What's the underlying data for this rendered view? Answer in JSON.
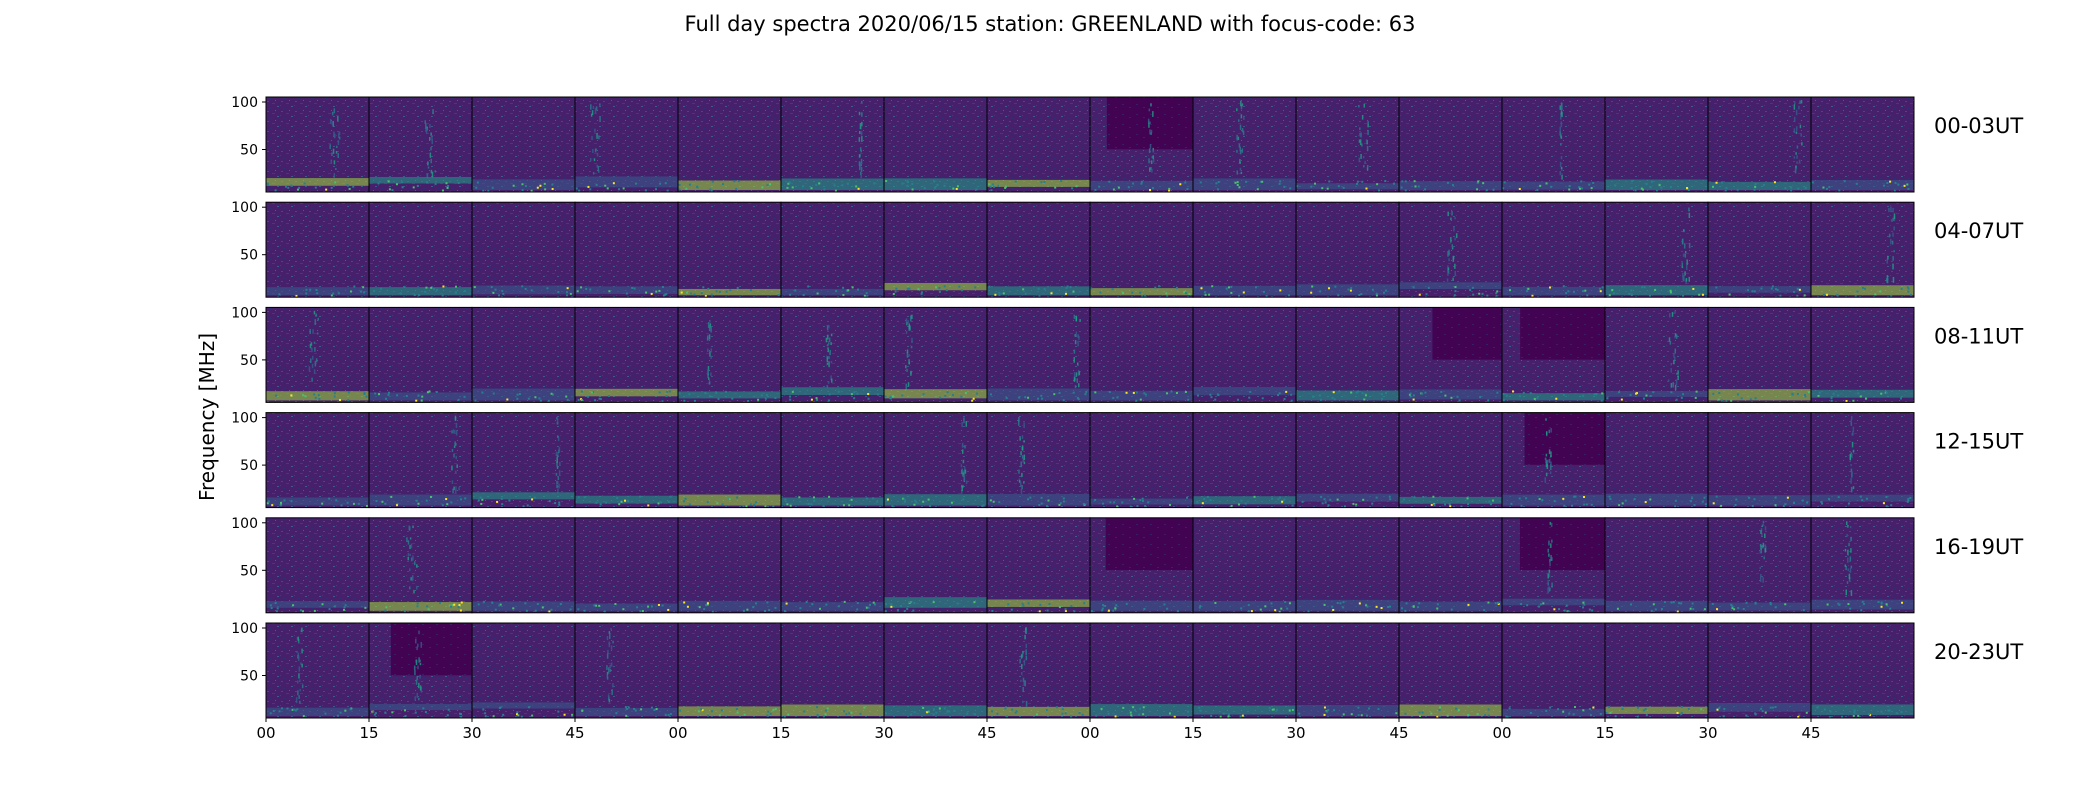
{
  "chart_data": {
    "type": "heatmap",
    "title": "Full day spectra 2020/06/15 station: GREENLAND with focus-code: 63",
    "ylabel": "Frequency [MHz]",
    "xlabel": "",
    "y_tick_labels": [
      "100",
      "50"
    ],
    "x_tick_labels": [
      "00",
      "15",
      "30",
      "45",
      "00",
      "15",
      "30",
      "45",
      "00",
      "15",
      "30",
      "45",
      "00",
      "15",
      "30",
      "45"
    ],
    "panels_per_row": 16,
    "rows": [
      {
        "label": "00-03UT"
      },
      {
        "label": "04-07UT"
      },
      {
        "label": "08-11UT"
      },
      {
        "label": "12-15UT"
      },
      {
        "label": "16-19UT"
      },
      {
        "label": "20-23UT"
      }
    ],
    "colormap": [
      "#440154",
      "#46327e",
      "#365c8d",
      "#277f8e",
      "#1fa187",
      "#4ac16d",
      "#a0da39",
      "#fde725"
    ],
    "background_color": "#440154",
    "grid": false,
    "legend": "none"
  }
}
